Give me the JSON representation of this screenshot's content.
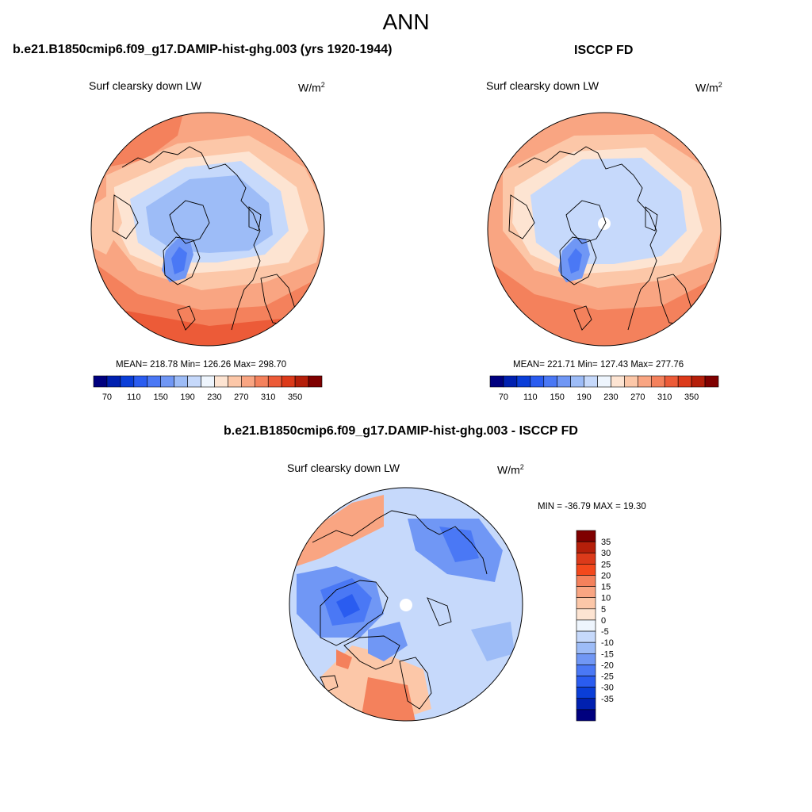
{
  "season": "ANN",
  "variable": "Surf clearsky down LW",
  "units_base": "W/m",
  "units_exp": "2",
  "panels": {
    "model": {
      "title": "b.e21.B1850cmip6.f09_g17.DAMIP-hist-ghg.003 (yrs 1920-1944)",
      "stats": "MEAN= 218.78  Min= 126.26  Max= 298.70"
    },
    "obs": {
      "title": "ISCCP FD",
      "stats": "MEAN= 221.71  Min= 127.43  Max= 277.76"
    },
    "diff": {
      "title": "b.e21.B1850cmip6.f09_g17.DAMIP-hist-ghg.003 - ISCCP FD",
      "stats": "MIN = -36.79 MAX =  19.30"
    }
  },
  "colorbar_main": {
    "labels": [
      "70",
      "110",
      "150",
      "190",
      "230",
      "270",
      "310",
      "350"
    ],
    "colors": [
      "#00007f",
      "#0020b0",
      "#0a3ed8",
      "#2a5cf0",
      "#4a78f5",
      "#7097f5",
      "#9dbcf7",
      "#c6d9fb",
      "#eef5fd",
      "#fde4d2",
      "#fcc7a8",
      "#f9a582",
      "#f4815c",
      "#ec5b38",
      "#dc3a1a",
      "#b51f0a",
      "#7f0000"
    ]
  },
  "colorbar_diff": {
    "labels": [
      "35",
      "30",
      "25",
      "20",
      "15",
      "10",
      "5",
      "0",
      "-5",
      "-10",
      "-15",
      "-20",
      "-25",
      "-30",
      "-35"
    ],
    "colors": [
      "#7f0000",
      "#b51f0a",
      "#dc3a1a",
      "#f3481c",
      "#f4815c",
      "#f9a582",
      "#fcc7a8",
      "#fde4d2",
      "#eef5fd",
      "#c6d9fb",
      "#9dbcf7",
      "#7097f5",
      "#4a78f5",
      "#2a5cf0",
      "#0a3ed8",
      "#0020b0",
      "#00007f"
    ]
  }
}
